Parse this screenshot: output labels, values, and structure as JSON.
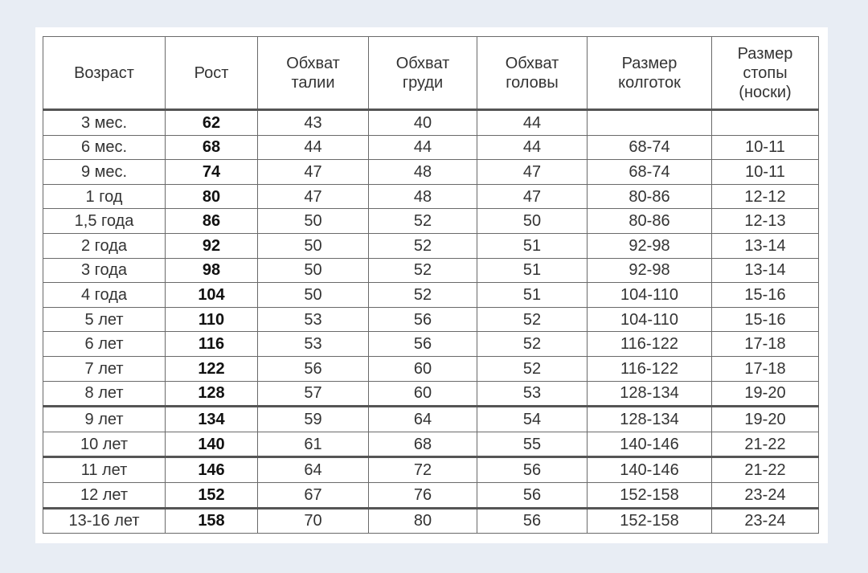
{
  "table": {
    "headers": [
      [
        "Возраст"
      ],
      [
        "Рост"
      ],
      [
        "Обхват",
        "талии"
      ],
      [
        "Обхват",
        "груди"
      ],
      [
        "Обхват",
        "головы"
      ],
      [
        "Размер",
        "колготок"
      ],
      [
        "Размер",
        "стопы",
        "(носки)"
      ]
    ],
    "rows": [
      [
        "3 мес.",
        "62",
        "43",
        "40",
        "44",
        "",
        ""
      ],
      [
        "6 мес.",
        "68",
        "44",
        "44",
        "44",
        "68-74",
        "10-11"
      ],
      [
        "9 мес.",
        "74",
        "47",
        "48",
        "47",
        "68-74",
        "10-11"
      ],
      [
        "1 год",
        "80",
        "47",
        "48",
        "47",
        "80-86",
        "12-12"
      ],
      [
        "1,5 года",
        "86",
        "50",
        "52",
        "50",
        "80-86",
        "12-13"
      ],
      [
        "2 года",
        "92",
        "50",
        "52",
        "51",
        "92-98",
        "13-14"
      ],
      [
        "3 года",
        "98",
        "50",
        "52",
        "51",
        "92-98",
        "13-14"
      ],
      [
        "4 года",
        "104",
        "50",
        "52",
        "51",
        "104-110",
        "15-16"
      ],
      [
        "5 лет",
        "110",
        "53",
        "56",
        "52",
        "104-110",
        "15-16"
      ],
      [
        "6 лет",
        "116",
        "53",
        "56",
        "52",
        "116-122",
        "17-18"
      ],
      [
        "7 лет",
        "122",
        "56",
        "60",
        "52",
        "116-122",
        "17-18"
      ],
      [
        "8 лет",
        "128",
        "57",
        "60",
        "53",
        "128-134",
        "19-20"
      ],
      [
        "9 лет",
        "134",
        "59",
        "64",
        "54",
        "128-134",
        "19-20"
      ],
      [
        "10 лет",
        "140",
        "61",
        "68",
        "55",
        "140-146",
        "21-22"
      ],
      [
        "11 лет",
        "146",
        "64",
        "72",
        "56",
        "140-146",
        "21-22"
      ],
      [
        "12 лет",
        "152",
        "67",
        "76",
        "56",
        "152-158",
        "23-24"
      ],
      [
        "13-16 лет",
        "158",
        "70",
        "80",
        "56",
        "152-158",
        "23-24"
      ]
    ]
  }
}
